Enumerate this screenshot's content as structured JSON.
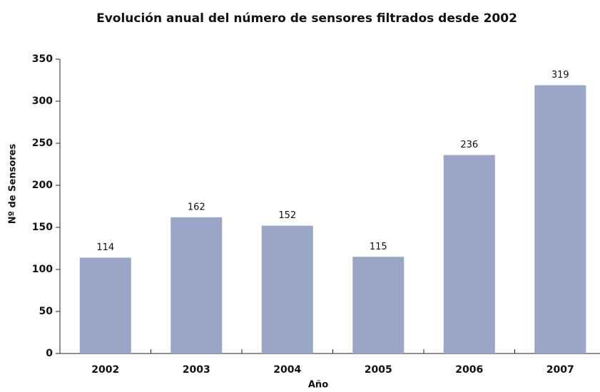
{
  "chart_data": {
    "type": "bar",
    "title": "Evolución anual del número de sensores filtrados desde 2002",
    "x_label": "Año",
    "y_label": "Nº de Sensores",
    "categories": [
      "2002",
      "2003",
      "2004",
      "2005",
      "2006",
      "2007"
    ],
    "values": [
      114,
      162,
      152,
      115,
      236,
      319
    ],
    "color": "#9aa6c8",
    "ylim": [
      0,
      350
    ],
    "yticks": [
      0,
      50,
      100,
      150,
      200,
      250,
      300,
      350
    ],
    "grid": false
  }
}
